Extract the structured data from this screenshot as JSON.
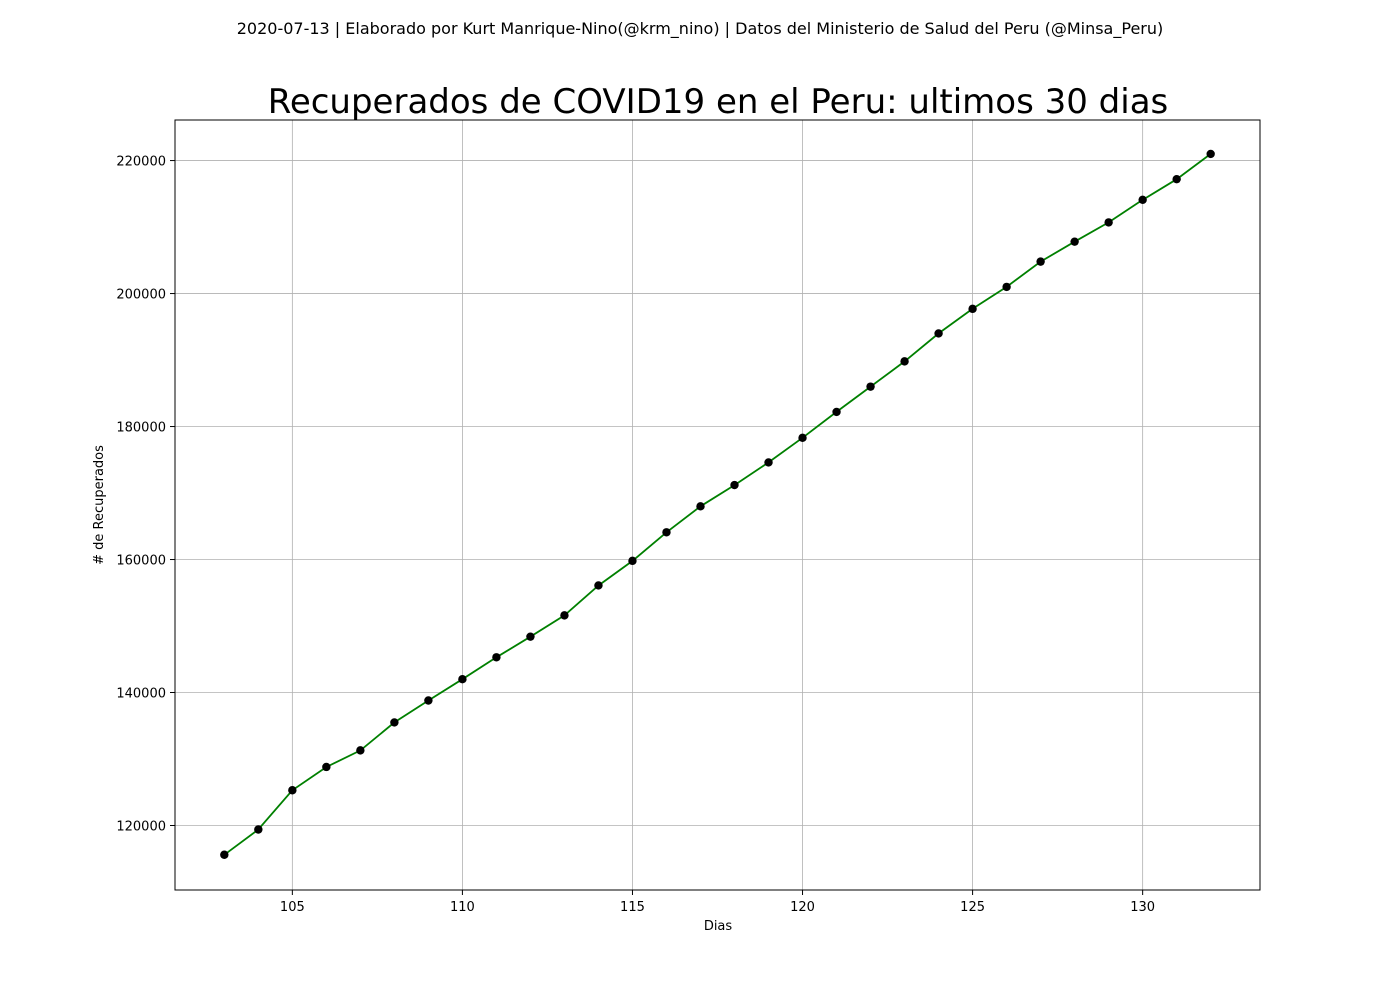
{
  "chart_data": {
    "type": "line",
    "suptitle": "2020-07-13 | Elaborado por Kurt Manrique-Nino(@krm_nino) | Datos del Ministerio de Salud del Peru (@Minsa_Peru)",
    "title": "Recuperados de COVID19 en el Peru: ultimos 30 dias",
    "xlabel": "Dias",
    "ylabel": "# de Recuperados",
    "xlim": [
      101.55,
      133.45
    ],
    "ylim": [
      110300,
      226100
    ],
    "xticks": [
      105,
      110,
      115,
      120,
      125,
      130
    ],
    "yticks": [
      120000,
      140000,
      160000,
      180000,
      200000,
      220000
    ],
    "grid": true,
    "line_color": "#008000",
    "marker_color": "#000000",
    "x": [
      103,
      104,
      105,
      106,
      107,
      108,
      109,
      110,
      111,
      112,
      113,
      114,
      115,
      116,
      117,
      118,
      119,
      120,
      121,
      122,
      123,
      124,
      125,
      126,
      127,
      128,
      129,
      130,
      131,
      132
    ],
    "values": [
      115600,
      119400,
      125300,
      128800,
      131300,
      135500,
      138800,
      142000,
      145300,
      148400,
      151600,
      156100,
      159800,
      164100,
      168000,
      171200,
      174600,
      178300,
      182200,
      186000,
      189800,
      194000,
      197700,
      201000,
      204800,
      207800,
      210700,
      214100,
      217200,
      221000
    ]
  }
}
